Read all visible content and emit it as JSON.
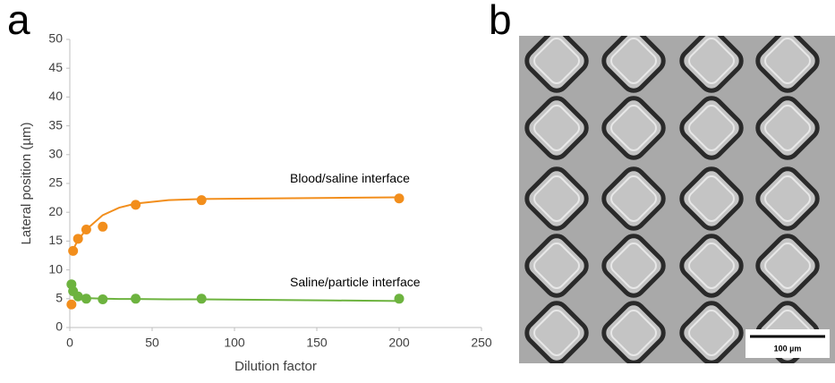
{
  "chart_data": {
    "type": "scatter",
    "panel_label": "a",
    "x_label": "Dilution factor",
    "y_label": "Lateral position (µm)",
    "xlim": [
      0,
      250
    ],
    "xticks": [
      0,
      50,
      100,
      150,
      200,
      250
    ],
    "ylim": [
      0,
      50
    ],
    "yticks": [
      0,
      5,
      10,
      15,
      20,
      25,
      30,
      35,
      40,
      45,
      50
    ],
    "grid": false,
    "x": [
      1,
      2,
      5,
      10,
      20,
      40,
      80,
      200
    ],
    "fit_x": [
      1,
      5,
      10,
      20,
      30,
      40,
      60,
      80,
      120,
      160,
      200
    ],
    "series": [
      {
        "label": "Blood/saline interface",
        "color": "#f28e1c",
        "values": [
          4,
          13.3,
          15.4,
          17,
          17.5,
          21.3,
          22.1,
          22.4
        ],
        "fit": [
          13,
          15.2,
          17,
          19.5,
          20.8,
          21.5,
          22.1,
          22.3,
          22.4,
          22.5,
          22.6
        ]
      },
      {
        "label": "Saline/particle interface",
        "color": "#6db33f",
        "values": [
          7.5,
          6.3,
          5.4,
          5,
          4.9,
          5,
          5,
          5
        ],
        "fit": [
          6.3,
          5.4,
          5.1,
          5.0,
          4.95,
          4.95,
          4.9,
          4.9,
          4.8,
          4.7,
          4.6
        ]
      }
    ]
  },
  "image": {
    "panel_label": "b",
    "scale_bar_label": "100 µm"
  }
}
